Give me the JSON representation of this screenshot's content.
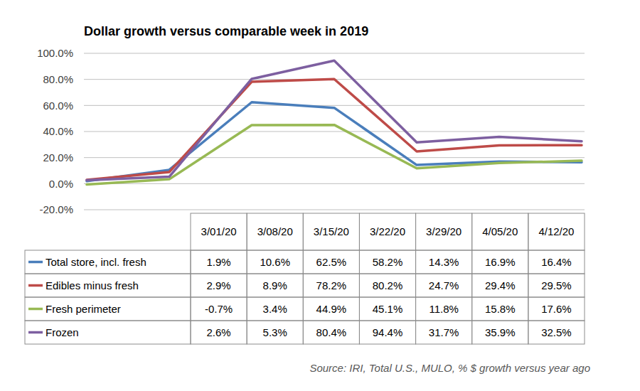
{
  "chart_data": {
    "type": "line",
    "title": "Dollar growth versus comparable week in 2019",
    "source": "Source: IRI, Total U.S., MULO, % $ growth versus year ago",
    "categories": [
      "3/01/20",
      "3/08/20",
      "3/15/20",
      "3/22/20",
      "3/29/20",
      "4/05/20",
      "4/12/20"
    ],
    "series": [
      {
        "name": "Total store, incl. fresh",
        "color": "#4a7ebb",
        "values": [
          1.9,
          10.6,
          62.5,
          58.2,
          14.3,
          16.9,
          16.4
        ],
        "value_labels": [
          "1.9%",
          "10.6%",
          "62.5%",
          "58.2%",
          "14.3%",
          "16.9%",
          "16.4%"
        ]
      },
      {
        "name": "Edibles minus fresh",
        "color": "#be4b48",
        "values": [
          2.9,
          8.9,
          78.2,
          80.2,
          24.7,
          29.4,
          29.5
        ],
        "value_labels": [
          "2.9%",
          "8.9%",
          "78.2%",
          "80.2%",
          "24.7%",
          "29.4%",
          "29.5%"
        ]
      },
      {
        "name": "Fresh perimeter",
        "color": "#98b954",
        "values": [
          -0.7,
          3.4,
          44.9,
          45.1,
          11.8,
          15.8,
          17.6
        ],
        "value_labels": [
          "-0.7%",
          "3.4%",
          "44.9%",
          "45.1%",
          "11.8%",
          "15.8%",
          "17.6%"
        ]
      },
      {
        "name": "Frozen",
        "color": "#7d5fa0",
        "values": [
          2.6,
          5.3,
          80.4,
          94.4,
          31.7,
          35.9,
          32.5
        ],
        "value_labels": [
          "2.6%",
          "5.3%",
          "80.4%",
          "94.4%",
          "31.7%",
          "35.9%",
          "32.5%"
        ]
      }
    ],
    "ylim": [
      -20,
      100
    ],
    "yticks": [
      {
        "value": -20,
        "label": "-20.0%"
      },
      {
        "value": 0,
        "label": "0.0%"
      },
      {
        "value": 20,
        "label": "20.0%"
      },
      {
        "value": 40,
        "label": "40.0%"
      },
      {
        "value": 60,
        "label": "60.0%"
      },
      {
        "value": 80,
        "label": "80.0%"
      },
      {
        "value": 100,
        "label": "100.0%"
      }
    ],
    "grid": true,
    "legend": "bottom",
    "data_labels": true
  }
}
